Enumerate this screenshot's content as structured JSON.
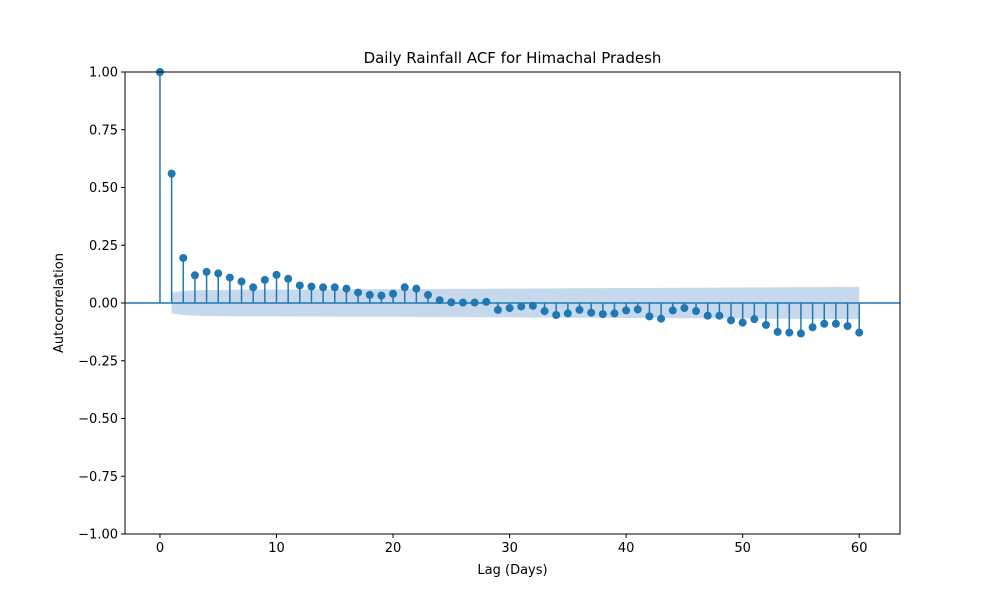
{
  "chart_data": {
    "type": "scatter",
    "subtype": "acf-stem",
    "title": "Daily Rainfall ACF for Himachal Pradesh",
    "xlabel": "Lag (Days)",
    "ylabel": "Autocorrelation",
    "xlim": [
      -3,
      63.5
    ],
    "ylim": [
      -1.0,
      1.0
    ],
    "xticks": [
      0,
      10,
      20,
      30,
      40,
      50,
      60
    ],
    "yticks": [
      -1.0,
      -0.75,
      -0.5,
      -0.25,
      0.0,
      0.25,
      0.5,
      0.75,
      1.0
    ],
    "xtick_labels": [
      "0",
      "10",
      "20",
      "30",
      "40",
      "50",
      "60"
    ],
    "ytick_labels": [
      "−1.00",
      "−0.75",
      "−0.50",
      "−0.25",
      "0.00",
      "0.25",
      "0.50",
      "0.75",
      "1.00"
    ],
    "grid": false,
    "colors": {
      "stem": "#1f77b4",
      "confidence_band": "#c6d9ec"
    },
    "lags": [
      0,
      1,
      2,
      3,
      4,
      5,
      6,
      7,
      8,
      9,
      10,
      11,
      12,
      13,
      14,
      15,
      16,
      17,
      18,
      19,
      20,
      21,
      22,
      23,
      24,
      25,
      26,
      27,
      28,
      29,
      30,
      31,
      32,
      33,
      34,
      35,
      36,
      37,
      38,
      39,
      40,
      41,
      42,
      43,
      44,
      45,
      46,
      47,
      48,
      49,
      50,
      51,
      52,
      53,
      54,
      55,
      56,
      57,
      58,
      59,
      60
    ],
    "acf": [
      1.0,
      0.56,
      0.195,
      0.12,
      0.135,
      0.128,
      0.11,
      0.093,
      0.068,
      0.1,
      0.122,
      0.105,
      0.076,
      0.071,
      0.068,
      0.068,
      0.062,
      0.045,
      0.035,
      0.032,
      0.04,
      0.068,
      0.062,
      0.035,
      0.012,
      0.003,
      0.002,
      0.002,
      0.005,
      -0.03,
      -0.022,
      -0.015,
      -0.012,
      -0.035,
      -0.052,
      -0.045,
      -0.03,
      -0.042,
      -0.048,
      -0.045,
      -0.032,
      -0.028,
      -0.058,
      -0.068,
      -0.032,
      -0.022,
      -0.035,
      -0.055,
      -0.055,
      -0.075,
      -0.085,
      -0.07,
      -0.095,
      -0.125,
      -0.128,
      -0.132,
      -0.105,
      -0.09,
      -0.09,
      -0.1,
      -0.128
    ],
    "confidence_band": {
      "lags": [
        1,
        2,
        3,
        5,
        10,
        20,
        30,
        40,
        50,
        60
      ],
      "upper": [
        0.045,
        0.052,
        0.055,
        0.057,
        0.058,
        0.06,
        0.062,
        0.065,
        0.067,
        0.07
      ],
      "lower": [
        -0.045,
        -0.052,
        -0.055,
        -0.057,
        -0.058,
        -0.06,
        -0.062,
        -0.065,
        -0.067,
        -0.07
      ]
    }
  }
}
